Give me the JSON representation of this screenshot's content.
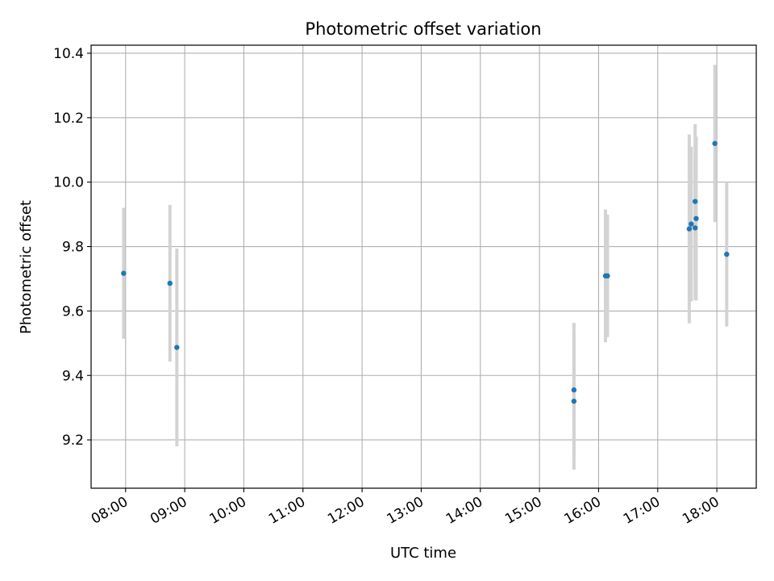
{
  "chart_data": {
    "type": "scatter",
    "title": "Photometric offset variation",
    "xlabel": "UTC time",
    "ylabel": "Photometric offset",
    "x_format": "HH:MM",
    "xlim": [
      "07:25",
      "18:40"
    ],
    "ylim": [
      9.05,
      10.425
    ],
    "x_ticks": [
      "08:00",
      "09:00",
      "10:00",
      "11:00",
      "12:00",
      "13:00",
      "14:00",
      "15:00",
      "16:00",
      "17:00",
      "18:00"
    ],
    "y_ticks": [
      9.2,
      9.4,
      9.6,
      9.8,
      10.0,
      10.2,
      10.4
    ],
    "y_tick_labels": [
      "9.2",
      "9.4",
      "9.6",
      "9.8",
      "10.0",
      "10.2",
      "10.4"
    ],
    "grid": true,
    "point_color": "#1f77b4",
    "errorbar_color": "#d3d3d3",
    "points": [
      {
        "x": "07:58",
        "y": 9.717,
        "err": 0.203
      },
      {
        "x": "08:45",
        "y": 9.686,
        "err": 0.243
      },
      {
        "x": "08:52",
        "y": 9.487,
        "err": 0.307
      },
      {
        "x": "15:35",
        "y": 9.355,
        "err": 0.208
      },
      {
        "x": "15:35",
        "y": 9.32,
        "err": 0.212
      },
      {
        "x": "16:07",
        "y": 9.709,
        "err": 0.206
      },
      {
        "x": "16:09",
        "y": 9.709,
        "err": 0.19
      },
      {
        "x": "17:32",
        "y": 9.855,
        "err": 0.293
      },
      {
        "x": "17:34",
        "y": 9.87,
        "err": 0.24
      },
      {
        "x": "17:38",
        "y": 9.858,
        "err": 0.224
      },
      {
        "x": "17:38",
        "y": 9.94,
        "err": 0.24
      },
      {
        "x": "17:39",
        "y": 9.887,
        "err": 0.254
      },
      {
        "x": "17:58",
        "y": 10.12,
        "err": 0.244
      },
      {
        "x": "18:10",
        "y": 9.776,
        "err": 0.224
      }
    ]
  }
}
